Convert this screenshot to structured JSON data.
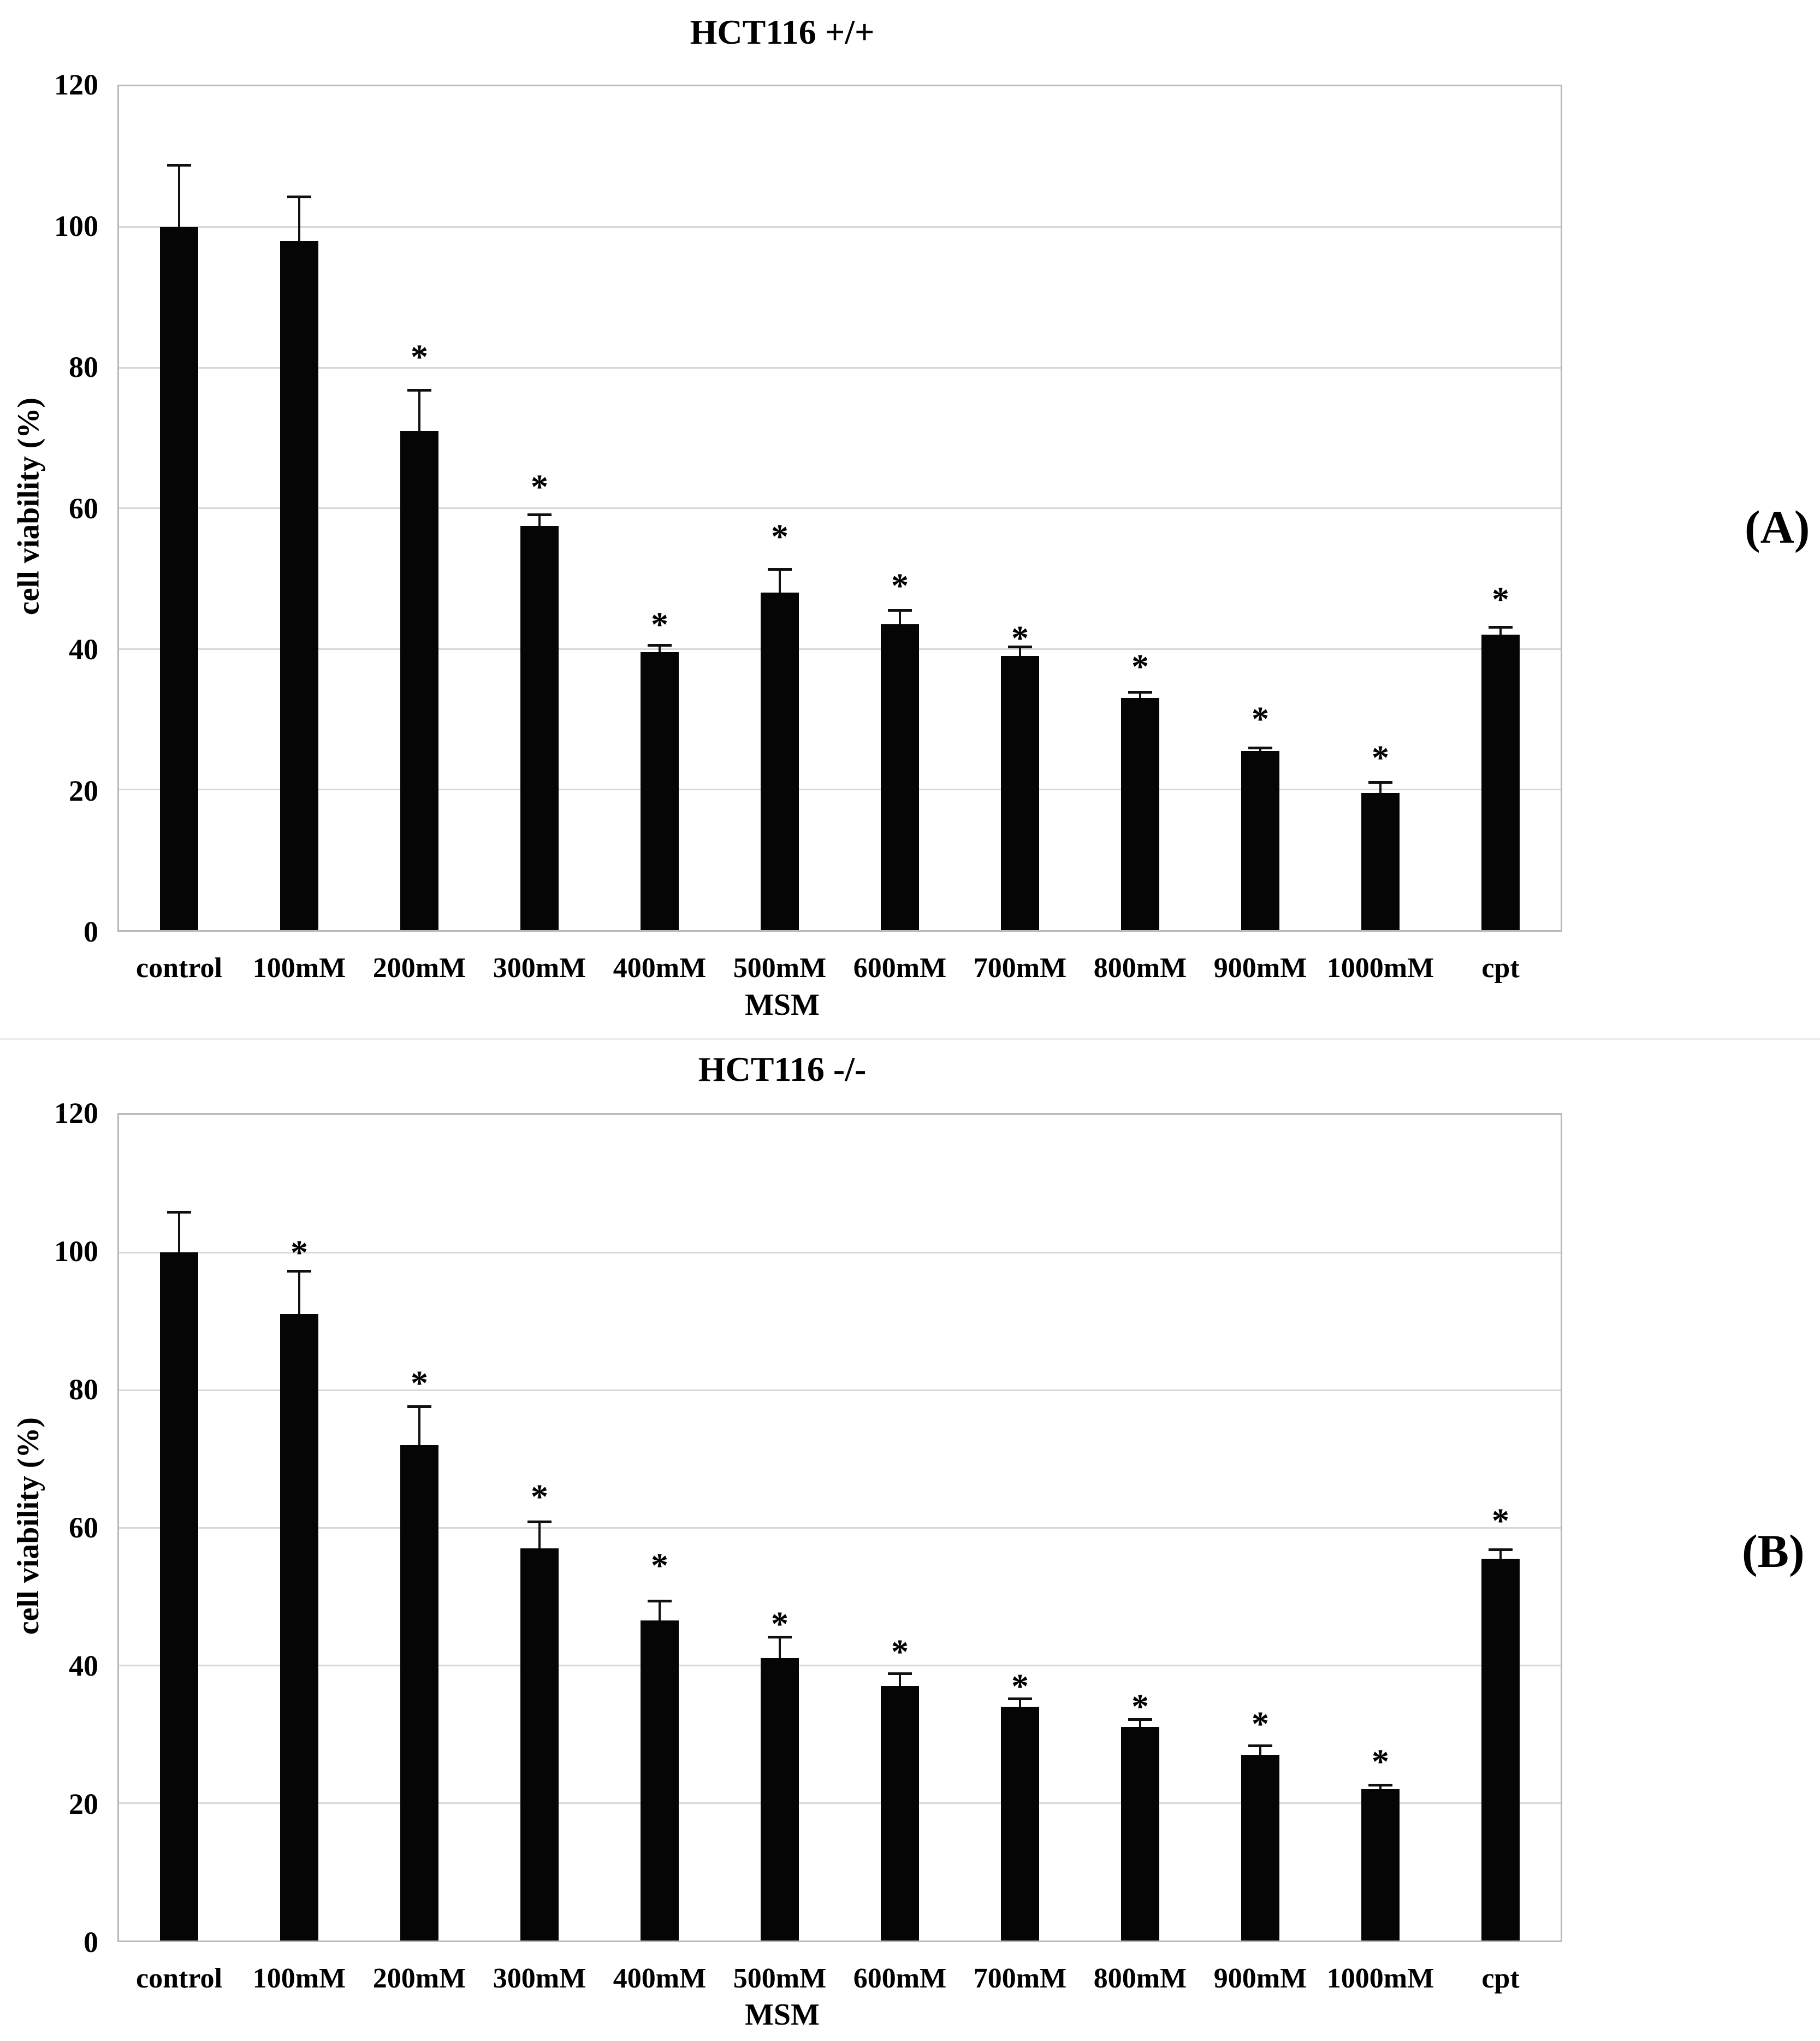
{
  "figure": {
    "background": "#ffffff",
    "significance_note_marker": "*"
  },
  "colors": {
    "bar": "#050505",
    "error_bar": "#101010",
    "gridline": "#d8d8d8",
    "plot_border": "#b9b9b9",
    "text": "#000000"
  },
  "chart_data": [
    {
      "type": "bar",
      "title": "HCT116 +/+",
      "panel_label": "(A)",
      "xlabel": "MSM",
      "ylabel": "cell viability (%)",
      "ylim": [
        0,
        120
      ],
      "yticks": [
        0,
        20,
        40,
        60,
        80,
        100,
        120
      ],
      "grid": "horizontal",
      "legend": "none",
      "sig_marker": "*",
      "categories": [
        "control",
        "100mM",
        "200mM",
        "300mM",
        "400mM",
        "500mM",
        "600mM",
        "700mM",
        "800mM",
        "900mM",
        "1000mM",
        "cpt"
      ],
      "values": [
        100,
        98,
        71,
        57.5,
        39.5,
        48,
        43.5,
        39,
        33,
        25.5,
        19.5,
        42
      ],
      "errors": [
        9,
        6.5,
        6,
        1.8,
        1.2,
        3.5,
        2.2,
        1.5,
        1,
        0.6,
        1.7,
        1.3
      ],
      "asterisk_y": [
        null,
        null,
        82,
        63.5,
        44,
        56.5,
        49.5,
        42,
        38,
        30.5,
        25,
        47.5
      ]
    },
    {
      "type": "bar",
      "title": "HCT116 -/-",
      "panel_label": "(B)",
      "xlabel": "MSM",
      "ylabel": "cell viability (%)",
      "ylim": [
        0,
        120
      ],
      "yticks": [
        0,
        20,
        40,
        60,
        80,
        100,
        120
      ],
      "grid": "horizontal",
      "legend": "none",
      "sig_marker": "*",
      "categories": [
        "control",
        "100mM",
        "200mM",
        "300mM",
        "400mM",
        "500mM",
        "600mM",
        "700mM",
        "800mM",
        "900mM",
        "1000mM",
        "cpt"
      ],
      "values": [
        100,
        91,
        72,
        57,
        46.5,
        41,
        37,
        34,
        31,
        27,
        22,
        55.5
      ],
      "errors": [
        6,
        6.5,
        5.8,
        4,
        3,
        3.3,
        2,
        1.3,
        1.3,
        1.5,
        0.8,
        1.5
      ],
      "asterisk_y": [
        null,
        100.5,
        81.5,
        65,
        55,
        46.5,
        42.5,
        37.5,
        34.5,
        32,
        26.5,
        61.5
      ]
    }
  ]
}
